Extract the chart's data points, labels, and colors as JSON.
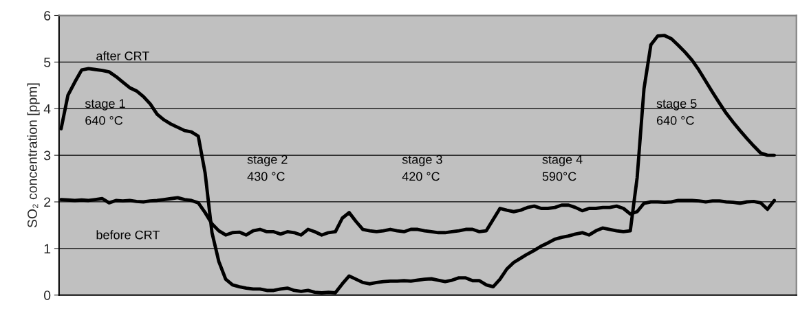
{
  "chart_data": {
    "type": "line",
    "ylabel": "SO₂ concentration [ppm]",
    "categories": [
      null,
      null,
      null,
      null,
      null,
      null,
      null,
      null,
      null,
      null,
      null,
      null,
      null,
      null,
      null,
      null,
      null,
      null,
      null,
      null,
      null,
      null,
      null,
      null,
      null,
      null,
      null,
      null,
      null,
      null,
      null,
      null,
      null,
      null,
      null,
      null,
      null,
      null,
      null,
      null,
      null,
      null,
      null,
      null,
      null,
      null,
      null,
      null,
      null,
      null,
      null,
      null,
      null,
      null,
      null,
      null,
      null,
      null,
      null,
      null,
      null,
      null,
      null,
      null,
      null,
      null,
      null,
      null,
      null,
      null,
      null,
      null,
      null,
      null,
      null,
      null,
      null,
      null,
      null,
      null,
      null,
      null,
      null,
      null,
      null,
      null,
      null,
      null,
      null,
      null,
      null,
      null,
      null,
      null,
      null,
      null,
      null,
      null,
      null,
      null,
      null,
      null,
      null,
      null,
      null
    ],
    "series": [
      {
        "name": "after CRT",
        "color": "#000000",
        "values": [
          3.57,
          4.29,
          4.57,
          4.83,
          4.86,
          4.84,
          4.82,
          4.79,
          4.69,
          4.57,
          4.45,
          4.38,
          4.26,
          4.1,
          3.88,
          3.76,
          3.67,
          3.6,
          3.53,
          3.5,
          3.41,
          2.62,
          1.34,
          0.72,
          0.34,
          0.22,
          0.18,
          0.15,
          0.13,
          0.13,
          0.1,
          0.1,
          0.13,
          0.15,
          0.1,
          0.08,
          0.1,
          0.06,
          0.05,
          0.06,
          0.05,
          0.24,
          0.41,
          0.34,
          0.27,
          0.24,
          0.27,
          0.29,
          0.3,
          0.3,
          0.31,
          0.3,
          0.32,
          0.34,
          0.35,
          0.32,
          0.29,
          0.32,
          0.37,
          0.37,
          0.31,
          0.31,
          0.22,
          0.18,
          0.34,
          0.56,
          0.7,
          0.79,
          0.88,
          0.96,
          1.05,
          1.12,
          1.2,
          1.24,
          1.27,
          1.31,
          1.34,
          1.29,
          1.38,
          1.44,
          1.41,
          1.38,
          1.36,
          1.38,
          2.52,
          4.43,
          5.37,
          5.56,
          5.57,
          5.5,
          5.36,
          5.21,
          5.04,
          4.83,
          4.59,
          4.35,
          4.12,
          3.9,
          3.71,
          3.53,
          3.36,
          3.2,
          3.05,
          3.0,
          3.0
        ]
      },
      {
        "name": "before CRT",
        "color": "#000000",
        "values": [
          2.05,
          2.04,
          2.03,
          2.04,
          2.03,
          2.05,
          2.07,
          1.98,
          2.03,
          2.02,
          2.03,
          2.01,
          2.0,
          2.02,
          2.03,
          2.05,
          2.07,
          2.09,
          2.05,
          2.03,
          1.98,
          1.77,
          1.53,
          1.38,
          1.29,
          1.34,
          1.35,
          1.29,
          1.38,
          1.41,
          1.36,
          1.36,
          1.31,
          1.36,
          1.34,
          1.29,
          1.41,
          1.36,
          1.29,
          1.34,
          1.36,
          1.65,
          1.77,
          1.58,
          1.41,
          1.38,
          1.36,
          1.38,
          1.41,
          1.38,
          1.36,
          1.41,
          1.41,
          1.38,
          1.36,
          1.34,
          1.34,
          1.36,
          1.38,
          1.41,
          1.41,
          1.36,
          1.38,
          1.62,
          1.86,
          1.82,
          1.79,
          1.82,
          1.88,
          1.91,
          1.86,
          1.86,
          1.88,
          1.93,
          1.93,
          1.88,
          1.81,
          1.86,
          1.86,
          1.88,
          1.88,
          1.91,
          1.86,
          1.74,
          1.79,
          1.97,
          2.0,
          2.0,
          1.99,
          2.0,
          2.03,
          2.03,
          2.03,
          2.02,
          2.0,
          2.02,
          2.02,
          2.0,
          1.99,
          1.97,
          2.0,
          2.01,
          1.98,
          1.84,
          2.03
        ]
      }
    ],
    "ylim": [
      0,
      6
    ],
    "yticks": [
      0,
      1,
      2,
      3,
      4,
      5,
      6
    ],
    "grid": "y",
    "legend": false,
    "tick_labels": "y",
    "marker": "none",
    "line_style": "solid",
    "annotations": [
      "stage 1\n640 °C",
      "stage 2\n430 °C",
      "stage 3\n420 °C",
      "stage 4\n590°C",
      "stage 5\n640 °C"
    ]
  }
}
